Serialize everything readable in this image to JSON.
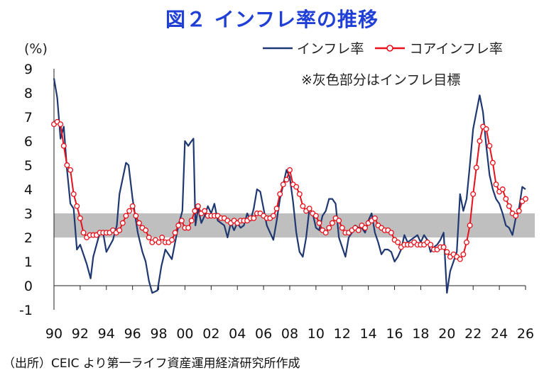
{
  "title": "図２ インフレ率の推移",
  "unit_label": "(%)",
  "note": "※灰色部分はインフレ目標",
  "source": "（出所）CEIC より第一ライフ資産運用経済研究所作成",
  "colors": {
    "inflation": "#1f3872",
    "core": "#e8101a",
    "band": "#bfbfbf",
    "title": "#1f3fd6"
  },
  "chart_data": {
    "type": "line",
    "title": "図２ インフレ率の推移",
    "ylabel": "(%)",
    "xlabel": "",
    "ylim": [
      -1,
      9
    ],
    "xlim": [
      1990,
      2026
    ],
    "y_ticks": [
      "9",
      "8",
      "7",
      "6",
      "5",
      "4",
      "3",
      "2",
      "1",
      "0",
      "-1"
    ],
    "x_ticks": [
      "90",
      "92",
      "94",
      "96",
      "98",
      "00",
      "02",
      "04",
      "06",
      "08",
      "10",
      "12",
      "14",
      "16",
      "18",
      "20",
      "22",
      "24",
      "26"
    ],
    "target_band": [
      2,
      3
    ],
    "grid": false,
    "legend_position": "top-right",
    "series": [
      {
        "name": "インフレ率",
        "marker": false,
        "points": [
          [
            1990.0,
            8.6
          ],
          [
            1990.25,
            7.8
          ],
          [
            1990.5,
            6.1
          ],
          [
            1990.75,
            6.6
          ],
          [
            1991.0,
            4.8
          ],
          [
            1991.25,
            3.4
          ],
          [
            1991.5,
            3.2
          ],
          [
            1991.75,
            1.5
          ],
          [
            1992.0,
            1.7
          ],
          [
            1992.5,
            0.9
          ],
          [
            1992.8,
            0.3
          ],
          [
            1993.0,
            1.2
          ],
          [
            1993.5,
            2.2
          ],
          [
            1993.75,
            2.2
          ],
          [
            1994.0,
            1.4
          ],
          [
            1994.5,
            1.9
          ],
          [
            1994.8,
            2.5
          ],
          [
            1995.0,
            3.8
          ],
          [
            1995.5,
            5.1
          ],
          [
            1995.7,
            5.0
          ],
          [
            1996.0,
            3.6
          ],
          [
            1996.4,
            2.2
          ],
          [
            1996.75,
            1.4
          ],
          [
            1997.0,
            1.0
          ],
          [
            1997.25,
            0.2
          ],
          [
            1997.5,
            -0.3
          ],
          [
            1997.9,
            -0.2
          ],
          [
            1998.2,
            0.8
          ],
          [
            1998.5,
            1.5
          ],
          [
            1998.75,
            1.3
          ],
          [
            1999.0,
            1.1
          ],
          [
            1999.25,
            1.8
          ],
          [
            1999.5,
            2.5
          ],
          [
            1999.8,
            3.1
          ],
          [
            2000.0,
            6.0
          ],
          [
            2000.25,
            5.8
          ],
          [
            2000.5,
            6.0
          ],
          [
            2000.65,
            6.1
          ],
          [
            2000.8,
            2.5
          ],
          [
            2001.0,
            3.2
          ],
          [
            2001.25,
            2.6
          ],
          [
            2001.5,
            2.9
          ],
          [
            2001.75,
            3.3
          ],
          [
            2002.0,
            3.0
          ],
          [
            2002.25,
            3.4
          ],
          [
            2002.5,
            2.7
          ],
          [
            2002.75,
            2.6
          ],
          [
            2003.0,
            2.5
          ],
          [
            2003.25,
            2.0
          ],
          [
            2003.5,
            2.6
          ],
          [
            2003.75,
            2.3
          ],
          [
            2004.0,
            2.6
          ],
          [
            2004.25,
            2.4
          ],
          [
            2004.5,
            2.5
          ],
          [
            2004.75,
            3.0
          ],
          [
            2005.0,
            2.7
          ],
          [
            2005.25,
            3.2
          ],
          [
            2005.5,
            4.0
          ],
          [
            2005.75,
            3.9
          ],
          [
            2006.0,
            3.2
          ],
          [
            2006.25,
            2.5
          ],
          [
            2006.5,
            2.2
          ],
          [
            2006.75,
            1.9
          ],
          [
            2007.0,
            2.7
          ],
          [
            2007.25,
            3.6
          ],
          [
            2007.5,
            4.2
          ],
          [
            2007.75,
            4.8
          ],
          [
            2008.0,
            4.5
          ],
          [
            2008.25,
            3.5
          ],
          [
            2008.5,
            2.2
          ],
          [
            2008.75,
            1.4
          ],
          [
            2009.0,
            1.2
          ],
          [
            2009.25,
            2.0
          ],
          [
            2009.5,
            3.2
          ],
          [
            2009.75,
            3.0
          ],
          [
            2010.0,
            2.4
          ],
          [
            2010.25,
            2.3
          ],
          [
            2010.5,
            2.9
          ],
          [
            2010.75,
            3.1
          ],
          [
            2011.0,
            3.6
          ],
          [
            2011.25,
            3.6
          ],
          [
            2011.5,
            3.4
          ],
          [
            2011.75,
            2.0
          ],
          [
            2012.0,
            1.6
          ],
          [
            2012.25,
            1.2
          ],
          [
            2012.5,
            2.0
          ],
          [
            2012.75,
            2.2
          ],
          [
            2013.0,
            2.5
          ],
          [
            2013.25,
            2.4
          ],
          [
            2013.5,
            2.4
          ],
          [
            2013.75,
            2.2
          ],
          [
            2014.0,
            2.7
          ],
          [
            2014.25,
            3.0
          ],
          [
            2014.5,
            2.2
          ],
          [
            2014.75,
            1.8
          ],
          [
            2015.0,
            1.3
          ],
          [
            2015.25,
            1.5
          ],
          [
            2015.5,
            1.5
          ],
          [
            2015.75,
            1.4
          ],
          [
            2016.0,
            1.0
          ],
          [
            2016.25,
            1.2
          ],
          [
            2016.5,
            1.5
          ],
          [
            2016.75,
            2.1
          ],
          [
            2017.0,
            1.8
          ],
          [
            2017.25,
            1.9
          ],
          [
            2017.5,
            2.0
          ],
          [
            2017.75,
            2.1
          ],
          [
            2018.0,
            1.8
          ],
          [
            2018.25,
            2.1
          ],
          [
            2018.5,
            1.9
          ],
          [
            2018.75,
            1.4
          ],
          [
            2019.0,
            1.6
          ],
          [
            2019.25,
            1.7
          ],
          [
            2019.5,
            1.9
          ],
          [
            2019.75,
            2.2
          ],
          [
            2020.0,
            -0.3
          ],
          [
            2020.25,
            0.6
          ],
          [
            2020.5,
            1.0
          ],
          [
            2020.75,
            1.4
          ],
          [
            2021.0,
            3.8
          ],
          [
            2021.25,
            3.1
          ],
          [
            2021.5,
            3.6
          ],
          [
            2021.75,
            5.0
          ],
          [
            2022.0,
            6.5
          ],
          [
            2022.25,
            7.2
          ],
          [
            2022.5,
            7.9
          ],
          [
            2022.75,
            7.2
          ],
          [
            2023.0,
            5.8
          ],
          [
            2023.25,
            4.6
          ],
          [
            2023.5,
            4.0
          ],
          [
            2023.75,
            3.6
          ],
          [
            2024.0,
            3.4
          ],
          [
            2024.25,
            3.0
          ],
          [
            2024.5,
            2.5
          ],
          [
            2024.75,
            2.4
          ],
          [
            2025.0,
            2.1
          ],
          [
            2025.25,
            2.8
          ],
          [
            2025.5,
            3.2
          ],
          [
            2025.75,
            4.1
          ],
          [
            2026.0,
            4.0
          ]
        ]
      },
      {
        "name": "コアインフレ率",
        "marker": true,
        "points": [
          [
            1990.0,
            6.7
          ],
          [
            1990.25,
            6.8
          ],
          [
            1990.5,
            6.7
          ],
          [
            1990.75,
            5.8
          ],
          [
            1991.0,
            5.0
          ],
          [
            1991.25,
            4.8
          ],
          [
            1991.5,
            3.8
          ],
          [
            1991.75,
            3.3
          ],
          [
            1992.0,
            2.8
          ],
          [
            1992.25,
            2.2
          ],
          [
            1992.5,
            2.0
          ],
          [
            1992.75,
            2.1
          ],
          [
            1993.0,
            2.1
          ],
          [
            1993.25,
            2.1
          ],
          [
            1993.5,
            2.2
          ],
          [
            1993.75,
            2.2
          ],
          [
            1994.0,
            2.2
          ],
          [
            1994.25,
            2.2
          ],
          [
            1994.5,
            2.3
          ],
          [
            1994.75,
            2.2
          ],
          [
            1995.0,
            2.3
          ],
          [
            1995.25,
            2.6
          ],
          [
            1995.5,
            2.9
          ],
          [
            1995.75,
            3.1
          ],
          [
            1996.0,
            3.3
          ],
          [
            1996.25,
            2.9
          ],
          [
            1996.5,
            2.6
          ],
          [
            1996.75,
            2.4
          ],
          [
            1997.0,
            2.3
          ],
          [
            1997.25,
            2.0
          ],
          [
            1997.5,
            1.8
          ],
          [
            1997.75,
            1.9
          ],
          [
            1998.0,
            1.8
          ],
          [
            1998.25,
            2.0
          ],
          [
            1998.5,
            1.8
          ],
          [
            1998.75,
            1.8
          ],
          [
            1999.0,
            1.9
          ],
          [
            1999.25,
            2.2
          ],
          [
            1999.5,
            2.5
          ],
          [
            1999.75,
            2.7
          ],
          [
            2000.0,
            2.4
          ],
          [
            2000.25,
            2.4
          ],
          [
            2000.5,
            2.7
          ],
          [
            2000.75,
            3.1
          ],
          [
            2001.0,
            3.3
          ],
          [
            2001.25,
            3.0
          ],
          [
            2001.5,
            3.1
          ],
          [
            2001.75,
            2.9
          ],
          [
            2002.0,
            2.9
          ],
          [
            2002.25,
            2.9
          ],
          [
            2002.5,
            2.9
          ],
          [
            2002.75,
            2.8
          ],
          [
            2003.0,
            2.8
          ],
          [
            2003.25,
            2.7
          ],
          [
            2003.5,
            2.6
          ],
          [
            2003.75,
            2.7
          ],
          [
            2004.0,
            2.6
          ],
          [
            2004.25,
            2.7
          ],
          [
            2004.5,
            2.7
          ],
          [
            2004.75,
            2.7
          ],
          [
            2005.0,
            2.8
          ],
          [
            2005.25,
            2.8
          ],
          [
            2005.5,
            3.0
          ],
          [
            2005.75,
            3.0
          ],
          [
            2006.0,
            2.9
          ],
          [
            2006.25,
            2.8
          ],
          [
            2006.5,
            2.8
          ],
          [
            2006.75,
            2.9
          ],
          [
            2007.0,
            3.2
          ],
          [
            2007.25,
            3.8
          ],
          [
            2007.5,
            4.2
          ],
          [
            2007.75,
            4.4
          ],
          [
            2008.0,
            4.8
          ],
          [
            2008.25,
            4.2
          ],
          [
            2008.5,
            4.1
          ],
          [
            2008.75,
            3.8
          ],
          [
            2009.0,
            3.3
          ],
          [
            2009.25,
            3.1
          ],
          [
            2009.5,
            3.2
          ],
          [
            2009.75,
            3.0
          ],
          [
            2010.0,
            2.9
          ],
          [
            2010.25,
            2.6
          ],
          [
            2010.5,
            2.3
          ],
          [
            2010.75,
            2.2
          ],
          [
            2011.0,
            2.4
          ],
          [
            2011.25,
            2.6
          ],
          [
            2011.5,
            2.8
          ],
          [
            2011.75,
            2.7
          ],
          [
            2012.0,
            2.4
          ],
          [
            2012.25,
            2.2
          ],
          [
            2012.5,
            2.2
          ],
          [
            2012.75,
            2.3
          ],
          [
            2013.0,
            2.4
          ],
          [
            2013.25,
            2.3
          ],
          [
            2013.5,
            2.5
          ],
          [
            2013.75,
            2.4
          ],
          [
            2014.0,
            2.6
          ],
          [
            2014.25,
            2.7
          ],
          [
            2014.5,
            2.8
          ],
          [
            2014.75,
            2.5
          ],
          [
            2015.0,
            2.4
          ],
          [
            2015.25,
            2.3
          ],
          [
            2015.5,
            2.3
          ],
          [
            2015.75,
            2.2
          ],
          [
            2016.0,
            1.9
          ],
          [
            2016.25,
            1.8
          ],
          [
            2016.5,
            1.6
          ],
          [
            2016.75,
            1.7
          ],
          [
            2017.0,
            1.7
          ],
          [
            2017.25,
            1.7
          ],
          [
            2017.5,
            1.8
          ],
          [
            2017.75,
            1.7
          ],
          [
            2018.0,
            1.7
          ],
          [
            2018.25,
            1.7
          ],
          [
            2018.5,
            1.8
          ],
          [
            2018.75,
            1.7
          ],
          [
            2019.0,
            1.5
          ],
          [
            2019.25,
            1.5
          ],
          [
            2019.5,
            1.6
          ],
          [
            2019.75,
            1.6
          ],
          [
            2020.0,
            1.4
          ],
          [
            2020.25,
            1.2
          ],
          [
            2020.5,
            1.3
          ],
          [
            2020.75,
            1.2
          ],
          [
            2021.0,
            1.1
          ],
          [
            2021.25,
            1.3
          ],
          [
            2021.5,
            1.8
          ],
          [
            2021.75,
            2.5
          ],
          [
            2022.0,
            3.8
          ],
          [
            2022.25,
            4.9
          ],
          [
            2022.5,
            6.0
          ],
          [
            2022.75,
            6.6
          ],
          [
            2023.0,
            6.5
          ],
          [
            2023.25,
            5.8
          ],
          [
            2023.5,
            5.1
          ],
          [
            2023.75,
            4.2
          ],
          [
            2024.0,
            3.9
          ],
          [
            2024.25,
            4.0
          ],
          [
            2024.5,
            3.6
          ],
          [
            2024.75,
            3.3
          ],
          [
            2025.0,
            3.0
          ],
          [
            2025.25,
            2.9
          ],
          [
            2025.5,
            3.1
          ],
          [
            2025.75,
            3.5
          ],
          [
            2026.0,
            3.6
          ]
        ]
      }
    ]
  }
}
